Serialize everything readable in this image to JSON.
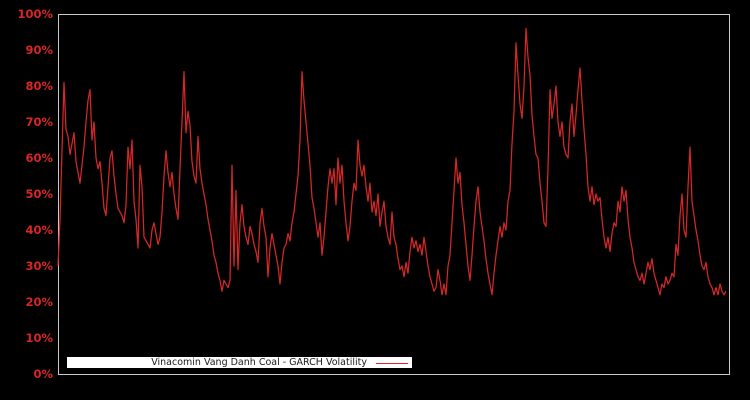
{
  "window": {
    "background": "#000000"
  },
  "chart_data": {
    "type": "line",
    "title": "",
    "xlabel": "",
    "ylabel": "",
    "legend": {
      "label": "Vinacomin Vang Danh Coal - GARCH Volatility",
      "position": "bottom-left",
      "background": "#ffffff",
      "text_color": "#1a1a1a"
    },
    "axes": {
      "ylim": [
        0,
        100
      ],
      "ytick_values": [
        0,
        10,
        20,
        30,
        40,
        50,
        60,
        70,
        80,
        90,
        100
      ],
      "ytick_labels": [
        "0%",
        "10%",
        "20%",
        "30%",
        "40%",
        "50%",
        "60%",
        "70%",
        "80%",
        "90%",
        "100%"
      ],
      "ytick_color": "#d62728",
      "xtick_labels": [],
      "grid": false,
      "border_color": "#c9c9c9",
      "plot_background": "#000000"
    },
    "series": [
      {
        "name": "Vinacomin Vang Danh Coal - GARCH Volatility",
        "color": "#d62728",
        "unit": "%",
        "values": [
          30,
          43,
          62,
          81,
          68,
          66,
          61,
          64,
          67,
          59,
          56,
          53,
          58,
          63,
          70,
          76,
          79,
          65,
          70,
          60,
          57,
          59,
          53,
          46,
          44,
          52,
          60,
          62,
          55,
          50,
          46,
          45,
          44,
          42,
          47,
          63,
          57,
          65,
          48,
          43,
          35,
          58,
          52,
          38,
          37,
          36,
          35,
          40,
          42,
          39,
          36,
          38,
          45,
          55,
          62,
          56,
          52,
          56,
          50,
          46,
          43,
          57,
          70,
          84,
          67,
          73,
          69,
          59,
          55,
          53,
          66,
          57,
          53,
          50,
          47,
          43,
          40,
          37,
          33,
          31,
          28,
          26,
          23,
          26,
          25,
          24,
          26,
          58,
          30,
          51,
          29,
          42,
          47,
          41,
          38,
          36,
          41,
          39,
          36,
          34,
          31,
          42,
          46,
          41,
          38,
          27,
          35,
          39,
          36,
          33,
          30,
          25,
          31,
          35,
          36,
          39,
          37,
          42,
          45,
          50,
          55,
          65,
          84,
          76,
          70,
          64,
          58,
          49,
          46,
          42,
          38,
          42,
          33,
          38,
          45,
          52,
          57,
          53,
          57,
          47,
          60,
          53,
          58,
          48,
          42,
          37,
          41,
          48,
          53,
          51,
          65,
          58,
          55,
          58,
          52,
          48,
          53,
          45,
          48,
          44,
          50,
          41,
          45,
          48,
          41,
          38,
          36,
          45,
          38,
          36,
          32,
          29,
          30,
          27,
          31,
          28,
          34,
          38,
          35,
          37,
          34,
          36,
          33,
          38,
          34,
          30,
          27,
          25,
          23,
          24,
          29,
          26,
          22,
          25,
          22,
          30,
          33,
          42,
          51,
          60,
          53,
          56,
          47,
          42,
          36,
          30,
          26,
          33,
          41,
          48,
          52,
          45,
          41,
          37,
          32,
          28,
          25,
          22,
          28,
          33,
          37,
          41,
          38,
          42,
          40,
          48,
          51,
          64,
          73,
          92,
          83,
          75,
          71,
          80,
          96,
          88,
          83,
          72,
          66,
          61,
          60,
          53,
          48,
          42,
          41,
          57,
          79,
          71,
          75,
          80,
          70,
          66,
          70,
          63,
          61,
          60,
          70,
          75,
          66,
          72,
          79,
          85,
          76,
          68,
          61,
          52,
          48,
          52,
          47,
          50,
          48,
          49,
          43,
          38,
          35,
          38,
          34,
          39,
          42,
          41,
          48,
          45,
          52,
          48,
          51,
          43,
          38,
          35,
          31,
          29,
          27,
          26,
          28,
          25,
          28,
          31,
          29,
          32,
          28,
          26,
          24,
          22,
          25,
          24,
          27,
          25,
          26,
          28,
          27,
          36,
          33,
          44,
          50,
          40,
          38,
          52,
          63,
          48,
          44,
          40,
          37,
          33,
          30,
          29,
          31,
          27,
          25,
          24,
          22,
          24,
          22,
          25,
          23,
          22,
          23
        ]
      }
    ]
  }
}
